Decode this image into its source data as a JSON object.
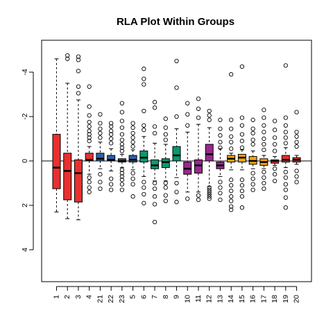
{
  "chart_data": {
    "type": "boxplot",
    "title": "RLA Plot Within Groups",
    "xlabel": "",
    "ylabel": "",
    "y_axis_reversed": true,
    "ylim": [
      5.4,
      -5.4
    ],
    "yticks": [
      -4,
      -2,
      0,
      2,
      4
    ],
    "yticklabels": [
      "-4",
      "-2",
      "0",
      "2",
      "4"
    ],
    "reference_line": 0,
    "grid": false,
    "legend": "none",
    "boxes": [
      {
        "label": "1",
        "color": "#E8302F",
        "whisker_low": -4.6,
        "q1": -1.2,
        "median": 0.3,
        "q3": 1.25,
        "whisker_high": 2.3,
        "outliers": []
      },
      {
        "label": "2",
        "color": "#E8302F",
        "whisker_low": -3.5,
        "q1": -0.35,
        "median": 0.45,
        "q3": 1.75,
        "whisker_high": 2.6,
        "outliers": [
          -4.75,
          -4.6
        ]
      },
      {
        "label": "3",
        "color": "#E8302F",
        "whisker_low": -2.75,
        "q1": -0.05,
        "median": 0.55,
        "q3": 1.85,
        "whisker_high": 2.65,
        "outliers": [
          -4.7,
          -4.55,
          -4.05,
          -3.35,
          -3.05
        ]
      },
      {
        "label": "4",
        "color": "#E8302F",
        "whisker_low": -0.65,
        "q1": -0.35,
        "median": -0.05,
        "q3": 0.0,
        "whisker_high": 0.6,
        "outliers": [
          -3.35,
          -2.45,
          -2.05,
          -1.75,
          -1.55,
          -1.35,
          -1.2,
          -1.05,
          -0.9,
          0.75,
          0.95,
          1.2,
          1.4
        ]
      },
      {
        "label": "21",
        "color": "#2A62A9",
        "whisker_low": -0.85,
        "q1": -0.35,
        "median": -0.1,
        "q3": 0.0,
        "whisker_high": 0.35,
        "outliers": [
          -2.1,
          -1.7,
          -1.45,
          -1.25,
          -1.05,
          0.6,
          0.95,
          1.25
        ]
      },
      {
        "label": "22",
        "color": "#2A62A9",
        "whisker_low": -0.55,
        "q1": -0.25,
        "median": -0.05,
        "q3": 0.0,
        "whisker_high": 0.45,
        "outliers": [
          -1.7,
          -1.55,
          -1.35,
          -1.2,
          -1.0,
          -0.8,
          0.8,
          1.05,
          1.3
        ]
      },
      {
        "label": "23",
        "color": "#2A62A9",
        "whisker_low": -0.3,
        "q1": -0.1,
        "median": 0.0,
        "q3": 0.05,
        "whisker_high": 0.3,
        "outliers": [
          -2.6,
          -2.2,
          -1.8,
          -1.5,
          -1.2,
          -0.95,
          -0.75,
          -0.6,
          -0.45,
          0.4,
          0.55,
          0.7,
          0.85,
          1.05,
          1.3
        ]
      },
      {
        "label": "5",
        "color": "#2A62A9",
        "whisker_low": -0.5,
        "q1": -0.25,
        "median": -0.05,
        "q3": 0.05,
        "whisker_high": 0.4,
        "outliers": [
          -1.7,
          -1.5,
          -1.25,
          -1.05,
          -0.85,
          -0.65,
          0.55,
          0.8,
          1.05,
          1.6
        ]
      },
      {
        "label": "6",
        "color": "#099870",
        "whisker_low": -1.1,
        "q1": -0.45,
        "median": -0.15,
        "q3": 0.05,
        "whisker_high": 0.7,
        "outliers": [
          -4.15,
          -3.7,
          -3.45,
          -2.25,
          -1.6,
          -1.4,
          0.95,
          1.2,
          1.5,
          1.9
        ]
      },
      {
        "label": "7",
        "color": "#099870",
        "whisker_low": -0.8,
        "q1": -0.05,
        "median": 0.2,
        "q3": 0.35,
        "whisker_high": 0.9,
        "outliers": [
          -2.65,
          -2.4,
          -1.55,
          -1.25,
          1.0,
          1.25,
          1.6,
          1.95,
          2.75
        ]
      },
      {
        "label": "8",
        "color": "#099870",
        "whisker_low": -0.75,
        "q1": -0.1,
        "median": 0.05,
        "q3": 0.3,
        "whisker_high": 0.9,
        "outliers": [
          -1.9,
          -1.5,
          -1.2,
          -0.95,
          1.0,
          1.2,
          1.55,
          1.8
        ]
      },
      {
        "label": "9",
        "color": "#099870",
        "whisker_low": -1.45,
        "q1": -0.65,
        "median": -0.25,
        "q3": -0.0,
        "whisker_high": 0.75,
        "outliers": [
          -4.5,
          -3.3,
          -2.0,
          1.0,
          1.4,
          1.85
        ]
      },
      {
        "label": "10",
        "color": "#98298C",
        "whisker_low": -1.3,
        "q1": 0.05,
        "median": 0.35,
        "q3": 0.6,
        "whisker_high": 1.4,
        "outliers": [
          -2.6,
          -2.1,
          -1.6,
          1.7
        ]
      },
      {
        "label": "11",
        "color": "#98298C",
        "whisker_low": -1.65,
        "q1": -0.05,
        "median": 0.2,
        "q3": 0.55,
        "whisker_high": 1.4,
        "outliers": [
          -2.8,
          -2.35,
          -1.95,
          1.55,
          1.75
        ]
      },
      {
        "label": "12",
        "color": "#98298C",
        "whisker_low": -1.5,
        "q1": -0.75,
        "median": -0.3,
        "q3": 0.0,
        "whisker_high": 1.15,
        "outliers": [
          -2.25,
          -2.05,
          -1.85,
          1.2,
          1.3,
          1.4,
          1.5,
          1.6,
          1.7
        ]
      },
      {
        "label": "13",
        "color": "#98298C",
        "whisker_low": -0.55,
        "q1": 0.05,
        "median": 0.2,
        "q3": 0.35,
        "whisker_high": 0.7,
        "outliers": [
          -1.85,
          -1.45,
          -1.15,
          -0.85,
          -0.6,
          0.95,
          1.2,
          1.45,
          1.75
        ]
      },
      {
        "label": "14",
        "color": "#F8A20F",
        "whisker_low": -0.35,
        "q1": -0.25,
        "median": -0.1,
        "q3": 0.05,
        "whisker_high": 0.4,
        "outliers": [
          -3.9,
          -1.85,
          -1.45,
          -1.1,
          -0.85,
          -0.55,
          0.85,
          1.1,
          1.35,
          1.6,
          1.8,
          2.05,
          2.2
        ]
      },
      {
        "label": "15",
        "color": "#F8A20F",
        "whisker_low": -0.5,
        "q1": -0.3,
        "median": -0.15,
        "q3": 0.05,
        "whisker_high": 0.4,
        "outliers": [
          -4.25,
          -1.95,
          -1.6,
          -1.2,
          -0.9,
          -0.6,
          0.85,
          1.1,
          1.35,
          1.6,
          2.1
        ]
      },
      {
        "label": "16",
        "color": "#F8A20F",
        "whisker_low": -0.45,
        "q1": -0.2,
        "median": -0.0,
        "q3": 0.15,
        "whisker_high": 0.35,
        "outliers": [
          -1.85,
          -1.45,
          -1.25,
          -0.95,
          -0.75,
          0.55,
          0.8,
          1.05,
          1.3
        ]
      },
      {
        "label": "17",
        "color": "#F8A20F",
        "whisker_low": -0.25,
        "q1": -0.1,
        "median": 0.05,
        "q3": 0.2,
        "whisker_high": 0.35,
        "outliers": [
          -2.3,
          -1.95,
          -1.6,
          -1.3,
          -1.0,
          -0.75,
          -0.5,
          0.5,
          0.75,
          1.0,
          1.25
        ]
      },
      {
        "label": "18",
        "color": "#E8302F",
        "whisker_low": -0.2,
        "q1": -0.05,
        "median": 0.0,
        "q3": 0.1,
        "whisker_high": 0.2,
        "outliers": [
          -1.8,
          -1.4,
          -1.05,
          -0.75,
          -0.45,
          0.35,
          0.6,
          0.9
        ]
      },
      {
        "label": "19",
        "color": "#E8302F",
        "whisker_low": -0.6,
        "q1": -0.25,
        "median": -0.05,
        "q3": 0.05,
        "whisker_high": 0.3,
        "outliers": [
          -4.3,
          -1.95,
          -1.6,
          -1.3,
          -1.05,
          -0.8,
          0.5,
          0.75,
          1.05,
          1.3,
          1.65,
          2.1
        ]
      },
      {
        "label": "20",
        "color": "#E8302F",
        "whisker_low": -0.25,
        "q1": -0.15,
        "median": -0.05,
        "q3": 0.05,
        "whisker_high": 0.15,
        "outliers": [
          -2.2,
          -1.3,
          -1.1,
          -0.85,
          -0.65,
          0.45,
          0.7,
          0.95
        ]
      }
    ]
  }
}
